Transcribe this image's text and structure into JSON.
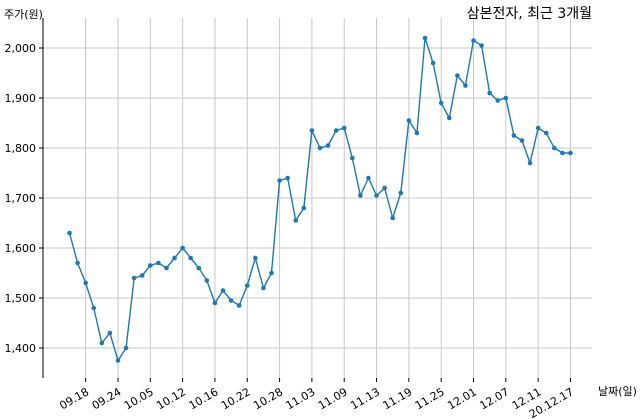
{
  "chart_data": {
    "type": "line",
    "title": "삼본전자, 최근 3개월",
    "xlabel": "날짜(일)",
    "ylabel": "주가(원)",
    "ylim": [
      1340,
      2060
    ],
    "yticks": [
      1400,
      1500,
      1600,
      1700,
      1800,
      1900,
      2000
    ],
    "ytick_labels": [
      "1,400",
      "1,500",
      "1,600",
      "1,700",
      "1,800",
      "1,900",
      "2,000"
    ],
    "xticks": [
      {
        "index": 2,
        "label": "09.18"
      },
      {
        "index": 6,
        "label": "09.24"
      },
      {
        "index": 10,
        "label": "10.05"
      },
      {
        "index": 14,
        "label": "10.12"
      },
      {
        "index": 18,
        "label": "10.16"
      },
      {
        "index": 22,
        "label": "10.22"
      },
      {
        "index": 26,
        "label": "10.28"
      },
      {
        "index": 30,
        "label": "11.03"
      },
      {
        "index": 34,
        "label": "11.09"
      },
      {
        "index": 38,
        "label": "11.13"
      },
      {
        "index": 42,
        "label": "11.19"
      },
      {
        "index": 46,
        "label": "11.25"
      },
      {
        "index": 50,
        "label": "12.01"
      },
      {
        "index": 54,
        "label": "12.07"
      },
      {
        "index": 58,
        "label": "12.11"
      },
      {
        "index": 62,
        "label": "20.12.17"
      }
    ],
    "grid": true,
    "colors": {
      "line": "#1f77b4"
    },
    "series": [
      {
        "values": [
          1630,
          1570,
          1530,
          1480,
          1410,
          1430,
          1375,
          1400,
          1540,
          1545,
          1565,
          1570,
          1560,
          1580,
          1600,
          1580,
          1560,
          1535,
          1490,
          1515,
          1495,
          1485,
          1525,
          1580,
          1520,
          1550,
          1735,
          1740,
          1655,
          1680,
          1835,
          1800,
          1805,
          1835,
          1840,
          1780,
          1705,
          1740,
          1705,
          1720,
          1660,
          1710,
          1855,
          1830,
          2020,
          1970,
          1890,
          1860,
          1945,
          1925,
          2015,
          2005,
          1910,
          1895,
          1900,
          1825,
          1815,
          1770,
          1840,
          1830,
          1800,
          1790,
          1790
        ]
      }
    ]
  }
}
